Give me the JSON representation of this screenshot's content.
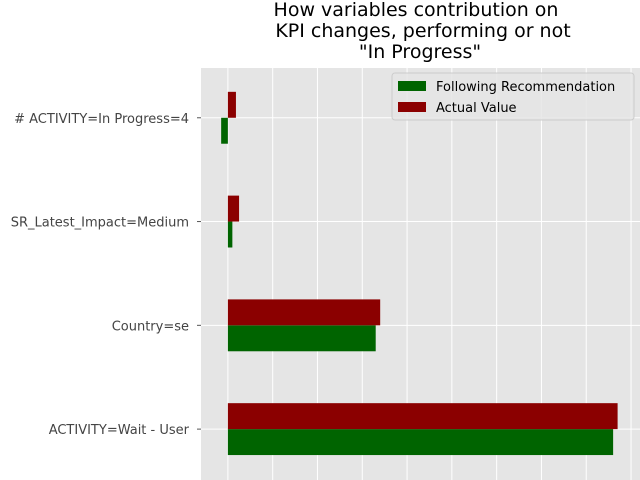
{
  "chart_data": {
    "type": "bar",
    "orientation": "horizontal",
    "title": [
      "How variables contribution on",
      "KPI changes, performing or not",
      "\"In Progress\""
    ],
    "categories": [
      "ACTIVITY=Wait - User",
      "Country=se",
      "SR_Latest_Impact=Medium",
      "# ACTIVITY=In Progress=4"
    ],
    "series": [
      {
        "name": "Following Recommendation",
        "color": "#006400",
        "values": [
          0.86,
          0.33,
          0.01,
          -0.015
        ]
      },
      {
        "name": "Actual Value",
        "color": "#8b0000",
        "values": [
          0.87,
          0.34,
          0.025,
          0.018
        ]
      }
    ],
    "xlim": [
      -0.06,
      0.92
    ],
    "grid": true,
    "legend_position": "top-right",
    "background": "#e5e5e5",
    "grid_color": "#ffffff"
  }
}
